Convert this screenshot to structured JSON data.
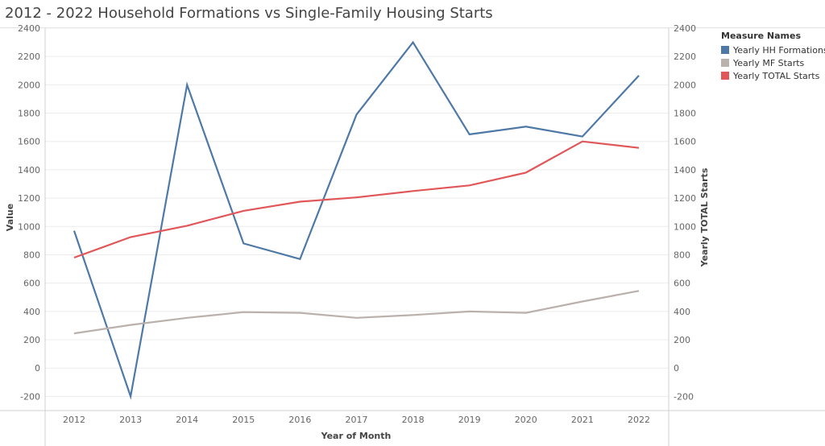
{
  "title": "2012 - 2022 Household Formations vs Single-Family Housing Starts",
  "legend": {
    "title": "Measure Names",
    "items": [
      {
        "label": "Yearly HH Formations",
        "color": "#4e79a7"
      },
      {
        "label": "Yearly MF Starts",
        "color": "#bab0ac"
      },
      {
        "label": "Yearly TOTAL Starts",
        "color": "#e15759"
      }
    ]
  },
  "chart_data": {
    "type": "line",
    "title": "2012 - 2022 Household Formations vs Single-Family Housing Starts",
    "xlabel": "Year of Month",
    "ylabel": "Value",
    "y2label": "Yearly TOTAL Starts",
    "ylim": [
      -300,
      2400
    ],
    "yticks": [
      -200,
      0,
      200,
      400,
      600,
      800,
      1000,
      1200,
      1400,
      1600,
      1800,
      2000,
      2200,
      2400
    ],
    "categories": [
      "2012",
      "2013",
      "2014",
      "2015",
      "2016",
      "2017",
      "2018",
      "2019",
      "2020",
      "2021",
      "2022"
    ],
    "series": [
      {
        "name": "Yearly HH Formations",
        "color": "#4e79a7",
        "values": [
          970,
          -200,
          2000,
          880,
          770,
          1790,
          2300,
          1650,
          1705,
          1635,
          2065
        ]
      },
      {
        "name": "Yearly MF Starts",
        "color": "#bab0ac",
        "values": [
          245,
          305,
          355,
          395,
          390,
          355,
          375,
          400,
          390,
          470,
          545
        ]
      },
      {
        "name": "Yearly TOTAL Starts",
        "color": "#e15759",
        "values": [
          780,
          925,
          1005,
          1110,
          1175,
          1205,
          1250,
          1290,
          1380,
          1600,
          1555
        ]
      }
    ],
    "grid": true,
    "legend_position": "top-right"
  }
}
